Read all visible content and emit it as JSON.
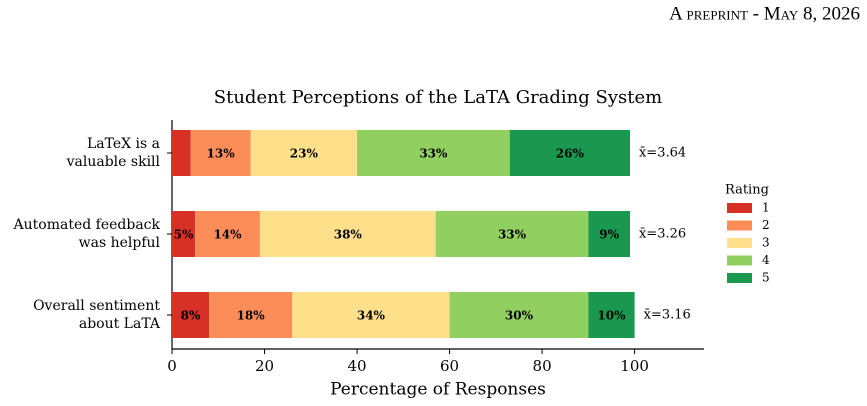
{
  "header": "A preprint - May 8, 2026",
  "chart_data": {
    "type": "stacked-barh",
    "title": "Student Perceptions of the LaTA Grading System",
    "xlabel": "Percentage of Responses",
    "categories": [
      "LaTeX is a\nvaluable skill",
      "Automated feedback\nwas helpful",
      "Overall sentiment\nabout LaTA"
    ],
    "series": [
      {
        "name": "1",
        "color": "#d73027",
        "label_color": "#ffffff",
        "values": [
          4,
          5,
          8
        ],
        "value_labels": [
          null,
          "5%",
          "8%"
        ]
      },
      {
        "name": "2",
        "color": "#fc8d59",
        "label_color": "#ffffff",
        "values": [
          13,
          14,
          18
        ],
        "value_labels": [
          "13%",
          "14%",
          "18%"
        ]
      },
      {
        "name": "3",
        "color": "#fee08b",
        "label_color": "#000000",
        "values": [
          23,
          38,
          34
        ],
        "value_labels": [
          "23%",
          "38%",
          "34%"
        ]
      },
      {
        "name": "4",
        "color": "#91cf60",
        "label_color": "#ffffff",
        "values": [
          33,
          33,
          30
        ],
        "value_labels": [
          "33%",
          "33%",
          "30%"
        ]
      },
      {
        "name": "5",
        "color": "#1a9850",
        "label_color": "#ffffff",
        "values": [
          26,
          9,
          10
        ],
        "value_labels": [
          "26%",
          "9%",
          "10%"
        ]
      }
    ],
    "annotations": [
      "x̄=3.64",
      "x̄=3.26",
      "x̄=3.16"
    ],
    "legend_title": "Rating",
    "legend": "right",
    "xlim": [
      0,
      115
    ],
    "xticks": [
      0,
      20,
      40,
      60,
      80,
      100
    ]
  }
}
